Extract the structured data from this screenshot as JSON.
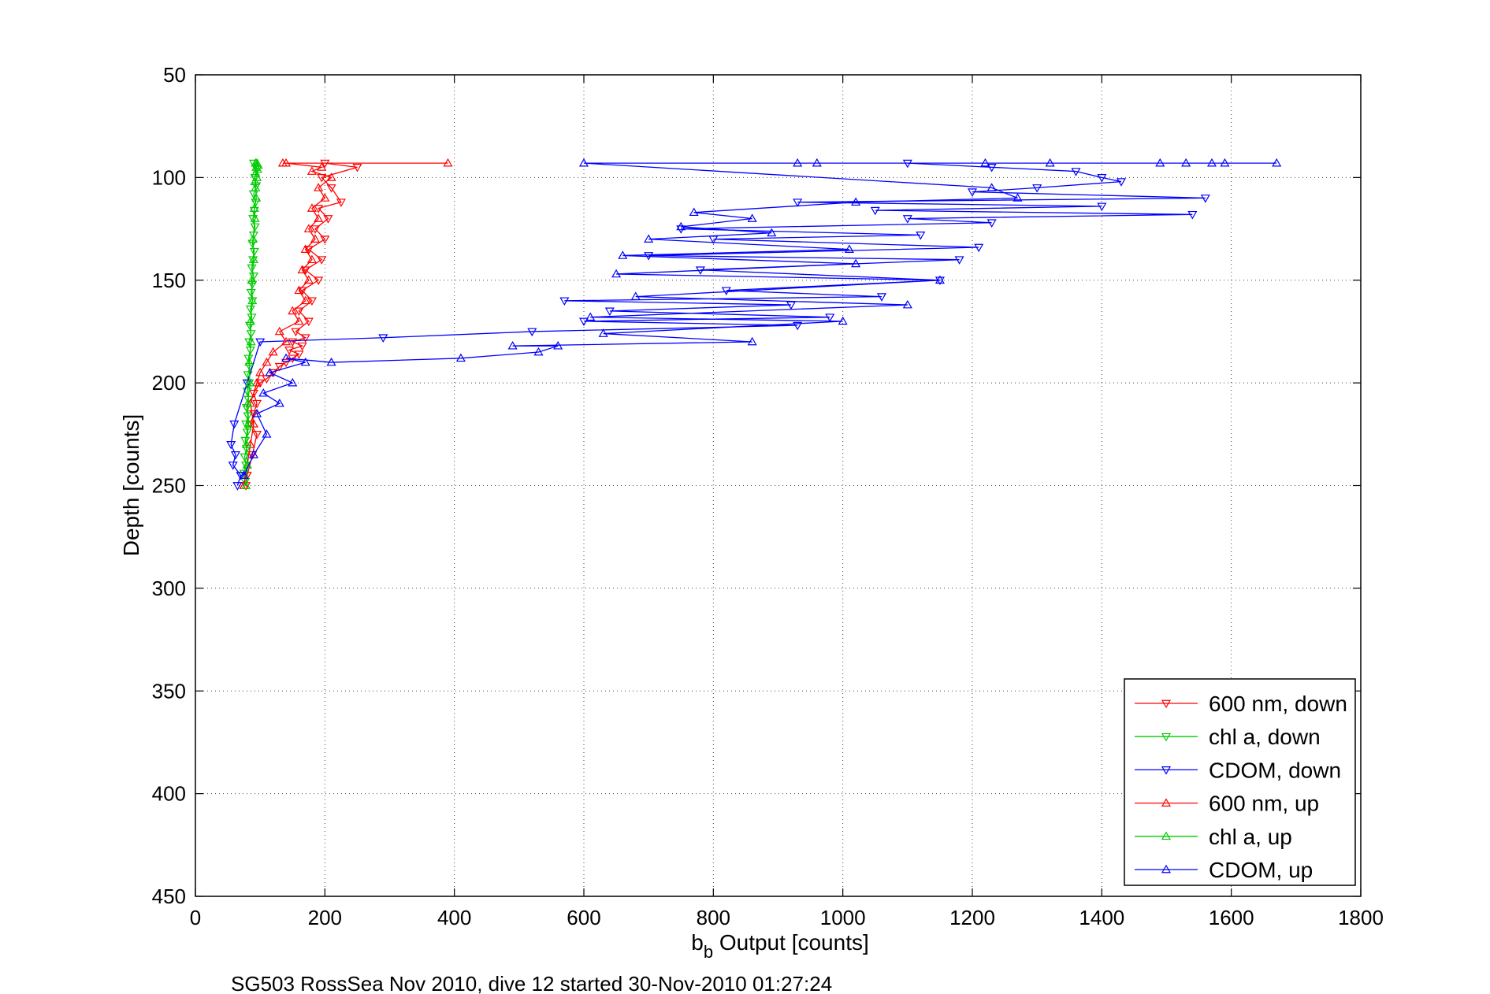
{
  "chart_data": {
    "type": "line",
    "xlabel": "b",
    "xlabel_subscript": "b",
    "xlabel_rest": " Output [counts]",
    "ylabel": "Depth [counts]",
    "caption": "SG503 RossSea Nov 2010, dive 12 started 30-Nov-2010 01:27:24",
    "xlim": [
      0,
      1800
    ],
    "ylim": [
      50,
      450
    ],
    "y_reversed": true,
    "grid": true,
    "legend_position": "bottom-right",
    "xticks": [
      "0",
      "200",
      "400",
      "600",
      "800",
      "1000",
      "1200",
      "1400",
      "1600",
      "1800"
    ],
    "yticks": [
      "50",
      "100",
      "150",
      "200",
      "250",
      "300",
      "350",
      "400",
      "450"
    ],
    "series": [
      {
        "name": "600 nm, down",
        "color": "#ff0000",
        "marker": "down",
        "x": [
          200,
          250,
          195,
          210,
          225,
          190,
          205,
          185,
          200,
          175,
          195,
          170,
          190,
          165,
          180,
          160,
          175,
          155,
          170,
          150,
          165,
          145,
          160,
          150,
          140,
          130,
          120,
          110,
          100,
          90,
          95,
          90,
          85,
          95,
          88,
          80,
          78
        ],
        "y": [
          93,
          95,
          100,
          105,
          112,
          115,
          120,
          125,
          130,
          135,
          140,
          145,
          150,
          155,
          160,
          165,
          170,
          175,
          178,
          180,
          182,
          184,
          186,
          188,
          190,
          192,
          195,
          198,
          200,
          205,
          210,
          215,
          220,
          225,
          235,
          245,
          250
        ]
      },
      {
        "name": "chl a, down",
        "color": "#00cc00",
        "marker": "down",
        "x": [
          90,
          95,
          92,
          94,
          90,
          93,
          91,
          89,
          92,
          90,
          88,
          91,
          89,
          87,
          90,
          88,
          86,
          88,
          85,
          87,
          84,
          86,
          83,
          85,
          82,
          84,
          81,
          83,
          80,
          82,
          79,
          81,
          78,
          80,
          77,
          79,
          76,
          78,
          75,
          77
        ],
        "y": [
          93,
          96,
          100,
          104,
          108,
          112,
          116,
          120,
          124,
          128,
          132,
          136,
          140,
          144,
          148,
          152,
          156,
          160,
          164,
          168,
          172,
          176,
          180,
          184,
          188,
          192,
          196,
          200,
          204,
          208,
          212,
          216,
          220,
          224,
          228,
          232,
          236,
          240,
          244,
          248
        ]
      },
      {
        "name": "CDOM, down",
        "color": "#0000ff",
        "marker": "down",
        "x": [
          1100,
          1230,
          1360,
          1400,
          1430,
          1300,
          1200,
          1560,
          930,
          1400,
          1050,
          1540,
          1100,
          1230,
          750,
          1120,
          800,
          1210,
          700,
          1180,
          780,
          1150,
          820,
          1060,
          570,
          920,
          640,
          980,
          600,
          930,
          520,
          290,
          100,
          80,
          60,
          55,
          62,
          58,
          70,
          65
        ],
        "y": [
          93,
          95,
          97,
          100,
          102,
          105,
          107,
          110,
          112,
          114,
          116,
          118,
          120,
          122,
          125,
          128,
          130,
          134,
          138,
          140,
          145,
          150,
          155,
          158,
          160,
          162,
          165,
          168,
          170,
          172,
          175,
          178,
          180,
          200,
          220,
          230,
          235,
          240,
          245,
          250
        ]
      },
      {
        "name": "600 nm, up",
        "color": "#ff0000",
        "marker": "up",
        "x": [
          75,
          80,
          85,
          90,
          85,
          95,
          100,
          110,
          120,
          140,
          130,
          160,
          150,
          170,
          160,
          175,
          165,
          180,
          170,
          185,
          175,
          190,
          180,
          200,
          190,
          210,
          180,
          195,
          140,
          390,
          135
        ],
        "y": [
          250,
          240,
          230,
          220,
          210,
          200,
          195,
          190,
          185,
          180,
          175,
          170,
          165,
          160,
          155,
          150,
          145,
          140,
          135,
          130,
          125,
          120,
          115,
          110,
          105,
          100,
          97,
          95,
          93,
          93,
          93
        ]
      },
      {
        "name": "chl a, up",
        "color": "#00cc00",
        "marker": "up",
        "x": [
          78,
          80,
          79,
          82,
          81,
          84,
          83,
          86,
          85,
          88,
          87,
          90,
          89,
          92,
          91,
          94,
          93,
          92,
          95,
          93,
          96,
          94,
          97,
          95,
          93
        ],
        "y": [
          250,
          240,
          230,
          220,
          210,
          200,
          190,
          180,
          170,
          160,
          150,
          140,
          130,
          120,
          115,
          110,
          105,
          102,
          100,
          98,
          96,
          95,
          94,
          93,
          93
        ]
      },
      {
        "name": "CDOM, up",
        "color": "#0000ff",
        "marker": "up",
        "x": [
          75,
          90,
          110,
          95,
          130,
          105,
          150,
          115,
          170,
          140,
          210,
          410,
          530,
          560,
          490,
          860,
          630,
          1000,
          610,
          1100,
          680,
          1150,
          650,
          1020,
          660,
          1010,
          700,
          890,
          750,
          860,
          770,
          1020,
          1270,
          1230,
          600,
          930,
          960,
          1490,
          1530,
          1570,
          1590,
          1670,
          1320,
          1220
        ],
        "y": [
          245,
          235,
          225,
          215,
          210,
          205,
          200,
          195,
          190,
          188,
          190,
          188,
          185,
          182,
          182,
          180,
          176,
          170,
          168,
          162,
          158,
          150,
          147,
          142,
          138,
          135,
          130,
          127,
          124,
          120,
          117,
          112,
          110,
          105,
          93,
          93,
          93,
          93,
          93,
          93,
          93,
          93,
          93,
          93
        ]
      }
    ]
  }
}
